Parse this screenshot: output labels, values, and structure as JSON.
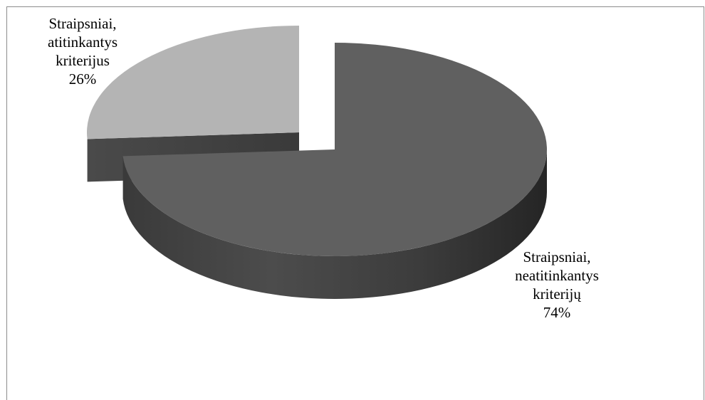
{
  "chart_data": {
    "type": "pie",
    "style": "3d-exploded",
    "title": "",
    "slices": [
      {
        "label_lines": [
          "Straipsniai,",
          "neatitinkantys",
          "kriterijų"
        ],
        "value": 74,
        "value_label": "74%",
        "color": "#606060"
      },
      {
        "label_lines": [
          "Straipsniai,",
          "atitinkantys",
          "kriterijus"
        ],
        "value": 26,
        "value_label": "26%",
        "color": "#b4b4b4"
      }
    ],
    "legend": "none"
  }
}
